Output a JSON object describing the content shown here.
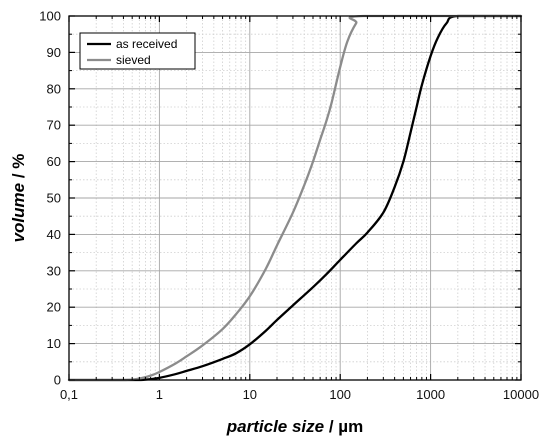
{
  "chart_data": {
    "type": "line",
    "xscale": "log",
    "xlim": [
      0.1,
      10000
    ],
    "ylim": [
      0,
      100
    ],
    "xticks": [
      0.1,
      1,
      10,
      100,
      1000,
      10000
    ],
    "xtick_labels": [
      "0,1",
      "1",
      "10",
      "100",
      "1000",
      "10000"
    ],
    "yticks": [
      0,
      10,
      20,
      30,
      40,
      50,
      60,
      70,
      80,
      90,
      100
    ],
    "ytick_labels": [
      "0",
      "10",
      "20",
      "30",
      "40",
      "50",
      "60",
      "70",
      "80",
      "90",
      "100"
    ],
    "xlabel": {
      "italic": "particle size",
      "unit": " / µm"
    },
    "ylabel": {
      "italic": "volume",
      "unit": " / %"
    },
    "grid": true,
    "legend_position": "top-left",
    "series": [
      {
        "name": "as received",
        "color": "#000000",
        "points": [
          [
            0.1,
            0
          ],
          [
            0.5,
            0
          ],
          [
            0.7,
            0.1
          ],
          [
            1,
            0.6
          ],
          [
            1.5,
            1.6
          ],
          [
            2,
            2.5
          ],
          [
            3,
            3.8
          ],
          [
            5,
            5.8
          ],
          [
            7,
            7.3
          ],
          [
            10,
            9.8
          ],
          [
            15,
            13.5
          ],
          [
            20,
            16.5
          ],
          [
            30,
            20.5
          ],
          [
            50,
            25.5
          ],
          [
            70,
            29
          ],
          [
            100,
            33
          ],
          [
            150,
            37.5
          ],
          [
            200,
            40.5
          ],
          [
            300,
            46
          ],
          [
            400,
            53
          ],
          [
            500,
            60
          ],
          [
            600,
            68
          ],
          [
            700,
            75
          ],
          [
            800,
            81
          ],
          [
            1000,
            89
          ],
          [
            1200,
            94
          ],
          [
            1500,
            98
          ],
          [
            2000,
            100
          ],
          [
            10000,
            100
          ]
        ]
      },
      {
        "name": "sieved",
        "color": "#8c8c8c",
        "points": [
          [
            0.1,
            0
          ],
          [
            0.4,
            0
          ],
          [
            0.6,
            0.4
          ],
          [
            0.8,
            1.2
          ],
          [
            1,
            2.2
          ],
          [
            1.5,
            4.5
          ],
          [
            2,
            6.5
          ],
          [
            3,
            9.5
          ],
          [
            5,
            14
          ],
          [
            7,
            18
          ],
          [
            10,
            23
          ],
          [
            15,
            30.5
          ],
          [
            20,
            37
          ],
          [
            30,
            46
          ],
          [
            40,
            53.5
          ],
          [
            50,
            60
          ],
          [
            60,
            66
          ],
          [
            70,
            71
          ],
          [
            80,
            76
          ],
          [
            100,
            86
          ],
          [
            120,
            93
          ],
          [
            150,
            98
          ],
          [
            180,
            100
          ],
          [
            10000,
            100
          ]
        ]
      }
    ]
  }
}
